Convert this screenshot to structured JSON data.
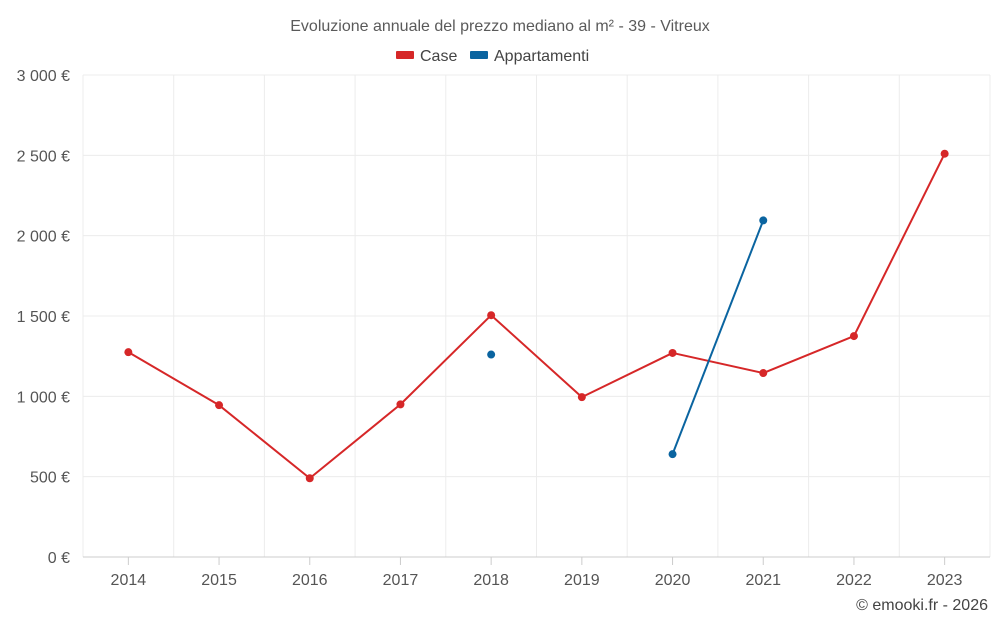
{
  "chart_data": {
    "type": "line",
    "title": "Evoluzione annuale del prezzo mediano al m² - 39 - Vitreux",
    "categories": [
      "2014",
      "2015",
      "2016",
      "2017",
      "2018",
      "2019",
      "2020",
      "2021",
      "2022",
      "2023"
    ],
    "y_ticks": [
      0,
      500,
      1000,
      1500,
      2000,
      2500,
      3000
    ],
    "y_tick_labels": [
      "0 €",
      "500 €",
      "1 000 €",
      "1 500 €",
      "2 000 €",
      "2 500 €",
      "3 000 €"
    ],
    "ylim": [
      0,
      3000
    ],
    "grid": true,
    "legend_position": "top-center",
    "series": [
      {
        "name": "Case",
        "color": "#d62728",
        "values": [
          1275,
          945,
          490,
          950,
          1505,
          995,
          1270,
          1145,
          1375,
          2510
        ]
      },
      {
        "name": "Appartamenti",
        "color": "#0a64a0",
        "values": [
          null,
          null,
          null,
          null,
          1260,
          null,
          640,
          2095,
          null,
          null
        ]
      }
    ],
    "credit": "© emooki.fr - 2026"
  }
}
